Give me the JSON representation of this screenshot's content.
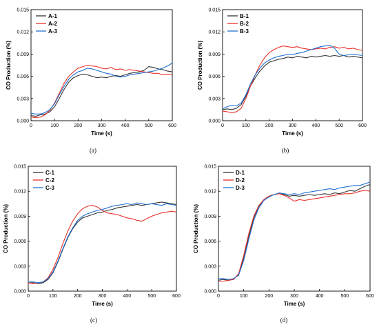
{
  "colors": {
    "black": "#333333",
    "red": "#e8302a",
    "blue": "#1f6fd1"
  },
  "chart_data": [
    {
      "type": "line",
      "panel_label": "(a)",
      "xlabel": "Time (s)",
      "ylabel": "CO Production (%)",
      "xlim": [
        0,
        600
      ],
      "ylim": [
        0,
        0.015
      ],
      "xticks": [
        "0",
        "100",
        "200",
        "300",
        "400",
        "500",
        "600"
      ],
      "yticks": [
        "0.000",
        "0.003",
        "0.006",
        "0.009",
        "0.012",
        "0.015"
      ],
      "legend_position": "top-left",
      "grid": false,
      "series": [
        {
          "name": "A-1",
          "color": "#333333",
          "x": [
            0,
            20,
            40,
            60,
            80,
            100,
            120,
            140,
            160,
            180,
            200,
            220,
            240,
            260,
            280,
            300,
            320,
            340,
            360,
            380,
            400,
            420,
            440,
            460,
            480,
            500,
            520,
            540,
            560,
            580,
            600
          ],
          "values": [
            0.0007,
            0.0006,
            0.0008,
            0.0009,
            0.0012,
            0.0019,
            0.003,
            0.0042,
            0.0052,
            0.0058,
            0.0061,
            0.0063,
            0.0062,
            0.006,
            0.0058,
            0.0059,
            0.0058,
            0.006,
            0.0061,
            0.006,
            0.0062,
            0.0064,
            0.0065,
            0.0066,
            0.0068,
            0.0073,
            0.0072,
            0.007,
            0.0069,
            0.0067,
            0.0066
          ]
        },
        {
          "name": "A-2",
          "color": "#e8302a",
          "x": [
            0,
            20,
            40,
            60,
            80,
            100,
            120,
            140,
            160,
            180,
            200,
            220,
            240,
            260,
            280,
            300,
            320,
            340,
            360,
            380,
            400,
            420,
            440,
            460,
            480,
            500,
            520,
            540,
            560,
            580,
            600
          ],
          "values": [
            0.0005,
            0.0004,
            0.0005,
            0.0008,
            0.0014,
            0.0024,
            0.0037,
            0.005,
            0.006,
            0.0066,
            0.0071,
            0.0073,
            0.0075,
            0.0074,
            0.0073,
            0.0071,
            0.007,
            0.0072,
            0.0069,
            0.007,
            0.0068,
            0.0069,
            0.0068,
            0.0067,
            0.0066,
            0.0065,
            0.0064,
            0.0064,
            0.0062,
            0.0063,
            0.0062
          ]
        },
        {
          "name": "A-3",
          "color": "#1f6fd1",
          "x": [
            0,
            20,
            40,
            60,
            80,
            100,
            120,
            140,
            160,
            180,
            200,
            220,
            240,
            260,
            280,
            300,
            320,
            340,
            360,
            380,
            400,
            420,
            440,
            460,
            480,
            500,
            520,
            540,
            560,
            580,
            600
          ],
          "values": [
            0.001,
            0.0009,
            0.0009,
            0.0011,
            0.0015,
            0.0023,
            0.0035,
            0.0046,
            0.0056,
            0.0062,
            0.0066,
            0.0068,
            0.0071,
            0.007,
            0.0068,
            0.0066,
            0.0064,
            0.0063,
            0.006,
            0.0059,
            0.006,
            0.0062,
            0.0063,
            0.0064,
            0.0065,
            0.0066,
            0.0067,
            0.0069,
            0.0071,
            0.0074,
            0.0078
          ]
        }
      ]
    },
    {
      "type": "line",
      "panel_label": "(b)",
      "xlabel": "Time (s)",
      "ylabel": "CO Production (%)",
      "xlim": [
        0,
        600
      ],
      "ylim": [
        0,
        0.015
      ],
      "xticks": [
        "0",
        "100",
        "200",
        "300",
        "400",
        "500",
        "600"
      ],
      "yticks": [
        "0.000",
        "0.003",
        "0.006",
        "0.009",
        "0.012",
        "0.015"
      ],
      "legend_position": "top-left",
      "grid": false,
      "series": [
        {
          "name": "B-1",
          "color": "#333333",
          "x": [
            0,
            20,
            40,
            60,
            80,
            100,
            120,
            140,
            160,
            180,
            200,
            220,
            240,
            260,
            280,
            300,
            320,
            340,
            360,
            380,
            400,
            420,
            440,
            460,
            480,
            500,
            520,
            540,
            560,
            580,
            600
          ],
          "values": [
            0.0015,
            0.0016,
            0.0015,
            0.0017,
            0.0022,
            0.0033,
            0.0047,
            0.0058,
            0.0067,
            0.0074,
            0.0079,
            0.0081,
            0.0083,
            0.0084,
            0.0086,
            0.0085,
            0.0087,
            0.0086,
            0.0085,
            0.0087,
            0.0086,
            0.0087,
            0.0088,
            0.0087,
            0.0088,
            0.0087,
            0.0088,
            0.0086,
            0.0087,
            0.0086,
            0.0085
          ]
        },
        {
          "name": "B-2",
          "color": "#e8302a",
          "x": [
            0,
            20,
            40,
            60,
            80,
            100,
            120,
            140,
            160,
            180,
            200,
            220,
            240,
            260,
            280,
            300,
            320,
            340,
            360,
            380,
            400,
            420,
            440,
            460,
            480,
            500,
            520,
            540,
            560,
            580,
            600
          ],
          "values": [
            0.0013,
            0.0012,
            0.0011,
            0.0012,
            0.0017,
            0.003,
            0.0047,
            0.0062,
            0.0075,
            0.0085,
            0.0092,
            0.0096,
            0.0099,
            0.0101,
            0.01,
            0.0099,
            0.01,
            0.0098,
            0.0097,
            0.0096,
            0.0097,
            0.0098,
            0.0097,
            0.0099,
            0.01,
            0.0098,
            0.0099,
            0.0097,
            0.0098,
            0.0096,
            0.0095
          ]
        },
        {
          "name": "B-3",
          "color": "#1f6fd1",
          "x": [
            0,
            20,
            40,
            60,
            80,
            100,
            120,
            140,
            160,
            180,
            200,
            220,
            240,
            260,
            280,
            300,
            320,
            340,
            360,
            380,
            400,
            420,
            440,
            460,
            480,
            500,
            520,
            540,
            560,
            580,
            600
          ],
          "values": [
            0.0016,
            0.0019,
            0.0021,
            0.002,
            0.0024,
            0.0035,
            0.005,
            0.0062,
            0.0071,
            0.0078,
            0.0082,
            0.0085,
            0.0087,
            0.0088,
            0.009,
            0.0089,
            0.0091,
            0.0092,
            0.0094,
            0.0096,
            0.0098,
            0.01,
            0.0101,
            0.0102,
            0.0098,
            0.009,
            0.0088,
            0.0089,
            0.009,
            0.0089,
            0.0088
          ]
        }
      ]
    },
    {
      "type": "line",
      "panel_label": "(c)",
      "xlabel": "Time (s)",
      "ylabel": "CO Production (%)",
      "xlim": [
        0,
        600
      ],
      "ylim": [
        0,
        0.015
      ],
      "xticks": [
        "0",
        "100",
        "200",
        "300",
        "400",
        "500",
        "600"
      ],
      "yticks": [
        "0.000",
        "0.003",
        "0.006",
        "0.009",
        "0.012",
        "0.015"
      ],
      "legend_position": "top-left",
      "grid": false,
      "series": [
        {
          "name": "C-1",
          "color": "#333333",
          "x": [
            0,
            20,
            40,
            60,
            80,
            100,
            120,
            140,
            160,
            180,
            200,
            220,
            240,
            260,
            280,
            300,
            320,
            340,
            360,
            380,
            400,
            420,
            440,
            460,
            480,
            500,
            520,
            540,
            560,
            580,
            600
          ],
          "values": [
            0.001,
            0.001,
            0.0009,
            0.001,
            0.0014,
            0.0022,
            0.0035,
            0.005,
            0.0064,
            0.0075,
            0.0083,
            0.0088,
            0.009,
            0.0092,
            0.0094,
            0.0095,
            0.0097,
            0.0098,
            0.01,
            0.0101,
            0.0102,
            0.0103,
            0.0104,
            0.0103,
            0.0104,
            0.0105,
            0.0106,
            0.0107,
            0.0106,
            0.0105,
            0.0104
          ]
        },
        {
          "name": "C-2",
          "color": "#e8302a",
          "x": [
            0,
            20,
            40,
            60,
            80,
            100,
            120,
            140,
            160,
            180,
            200,
            220,
            240,
            260,
            280,
            300,
            320,
            340,
            360,
            380,
            400,
            420,
            440,
            460,
            480,
            500,
            520,
            540,
            560,
            580,
            600
          ],
          "values": [
            0.001,
            0.0009,
            0.001,
            0.0011,
            0.0016,
            0.0026,
            0.004,
            0.0057,
            0.0072,
            0.0084,
            0.0093,
            0.0099,
            0.0102,
            0.0103,
            0.0101,
            0.0097,
            0.0094,
            0.0093,
            0.0092,
            0.009,
            0.0088,
            0.0087,
            0.0085,
            0.0084,
            0.0087,
            0.009,
            0.0092,
            0.0094,
            0.0095,
            0.0096,
            0.0095
          ]
        },
        {
          "name": "C-3",
          "color": "#1f6fd1",
          "x": [
            0,
            20,
            40,
            60,
            80,
            100,
            120,
            140,
            160,
            180,
            200,
            220,
            240,
            260,
            280,
            300,
            320,
            340,
            360,
            380,
            400,
            420,
            440,
            460,
            480,
            500,
            520,
            540,
            560,
            580,
            600
          ],
          "values": [
            0.0011,
            0.0011,
            0.001,
            0.0011,
            0.0015,
            0.0023,
            0.0036,
            0.0051,
            0.0065,
            0.0076,
            0.0085,
            0.009,
            0.0093,
            0.0095,
            0.0097,
            0.0098,
            0.01,
            0.0102,
            0.0103,
            0.0104,
            0.0105,
            0.0104,
            0.0106,
            0.0105,
            0.0104,
            0.0105,
            0.0104,
            0.0103,
            0.0105,
            0.0104,
            0.0103
          ]
        }
      ]
    },
    {
      "type": "line",
      "panel_label": "(d)",
      "xlabel": "Time (s)",
      "ylabel": "CO Production (%)",
      "xlim": [
        0,
        600
      ],
      "ylim": [
        0,
        0.015
      ],
      "xticks": [
        "0",
        "100",
        "200",
        "300",
        "400",
        "500",
        "600"
      ],
      "yticks": [
        "0.000",
        "0.003",
        "0.006",
        "0.009",
        "0.012",
        "0.015"
      ],
      "legend_position": "top-left",
      "grid": false,
      "series": [
        {
          "name": "D-1",
          "color": "#333333",
          "x": [
            0,
            20,
            40,
            60,
            80,
            100,
            120,
            140,
            160,
            180,
            200,
            220,
            240,
            260,
            280,
            300,
            320,
            340,
            360,
            380,
            400,
            420,
            440,
            460,
            480,
            500,
            520,
            540,
            560,
            580,
            600
          ],
          "values": [
            0.0013,
            0.0014,
            0.0013,
            0.0014,
            0.002,
            0.004,
            0.0066,
            0.0088,
            0.0102,
            0.011,
            0.0114,
            0.0116,
            0.0117,
            0.0116,
            0.0114,
            0.0115,
            0.0114,
            0.0115,
            0.0116,
            0.0115,
            0.0116,
            0.0117,
            0.0116,
            0.0118,
            0.0117,
            0.0119,
            0.0121,
            0.012,
            0.0123,
            0.0126,
            0.0128
          ]
        },
        {
          "name": "D-2",
          "color": "#e8302a",
          "x": [
            0,
            20,
            40,
            60,
            80,
            100,
            120,
            140,
            160,
            180,
            200,
            220,
            240,
            260,
            280,
            300,
            320,
            340,
            360,
            380,
            400,
            420,
            440,
            460,
            480,
            500,
            520,
            540,
            560,
            580,
            600
          ],
          "values": [
            0.0012,
            0.0012,
            0.0013,
            0.0014,
            0.0021,
            0.0043,
            0.0069,
            0.009,
            0.0103,
            0.011,
            0.0114,
            0.0116,
            0.0117,
            0.0115,
            0.0112,
            0.0108,
            0.011,
            0.0109,
            0.011,
            0.0111,
            0.0112,
            0.0113,
            0.0114,
            0.0115,
            0.0116,
            0.0117,
            0.0117,
            0.0118,
            0.012,
            0.0121,
            0.012
          ]
        },
        {
          "name": "D-3",
          "color": "#1f6fd1",
          "x": [
            0,
            20,
            40,
            60,
            80,
            100,
            120,
            140,
            160,
            180,
            200,
            220,
            240,
            260,
            280,
            300,
            320,
            340,
            360,
            380,
            400,
            420,
            440,
            460,
            480,
            500,
            520,
            540,
            560,
            580,
            600
          ],
          "values": [
            0.0015,
            0.0015,
            0.0014,
            0.0015,
            0.0019,
            0.0037,
            0.0062,
            0.0085,
            0.01,
            0.0109,
            0.0113,
            0.0116,
            0.0118,
            0.0117,
            0.0116,
            0.0117,
            0.0116,
            0.0118,
            0.0119,
            0.012,
            0.0121,
            0.0122,
            0.0123,
            0.0122,
            0.0124,
            0.0125,
            0.0126,
            0.0127,
            0.0127,
            0.0129,
            0.0131
          ]
        }
      ]
    }
  ]
}
